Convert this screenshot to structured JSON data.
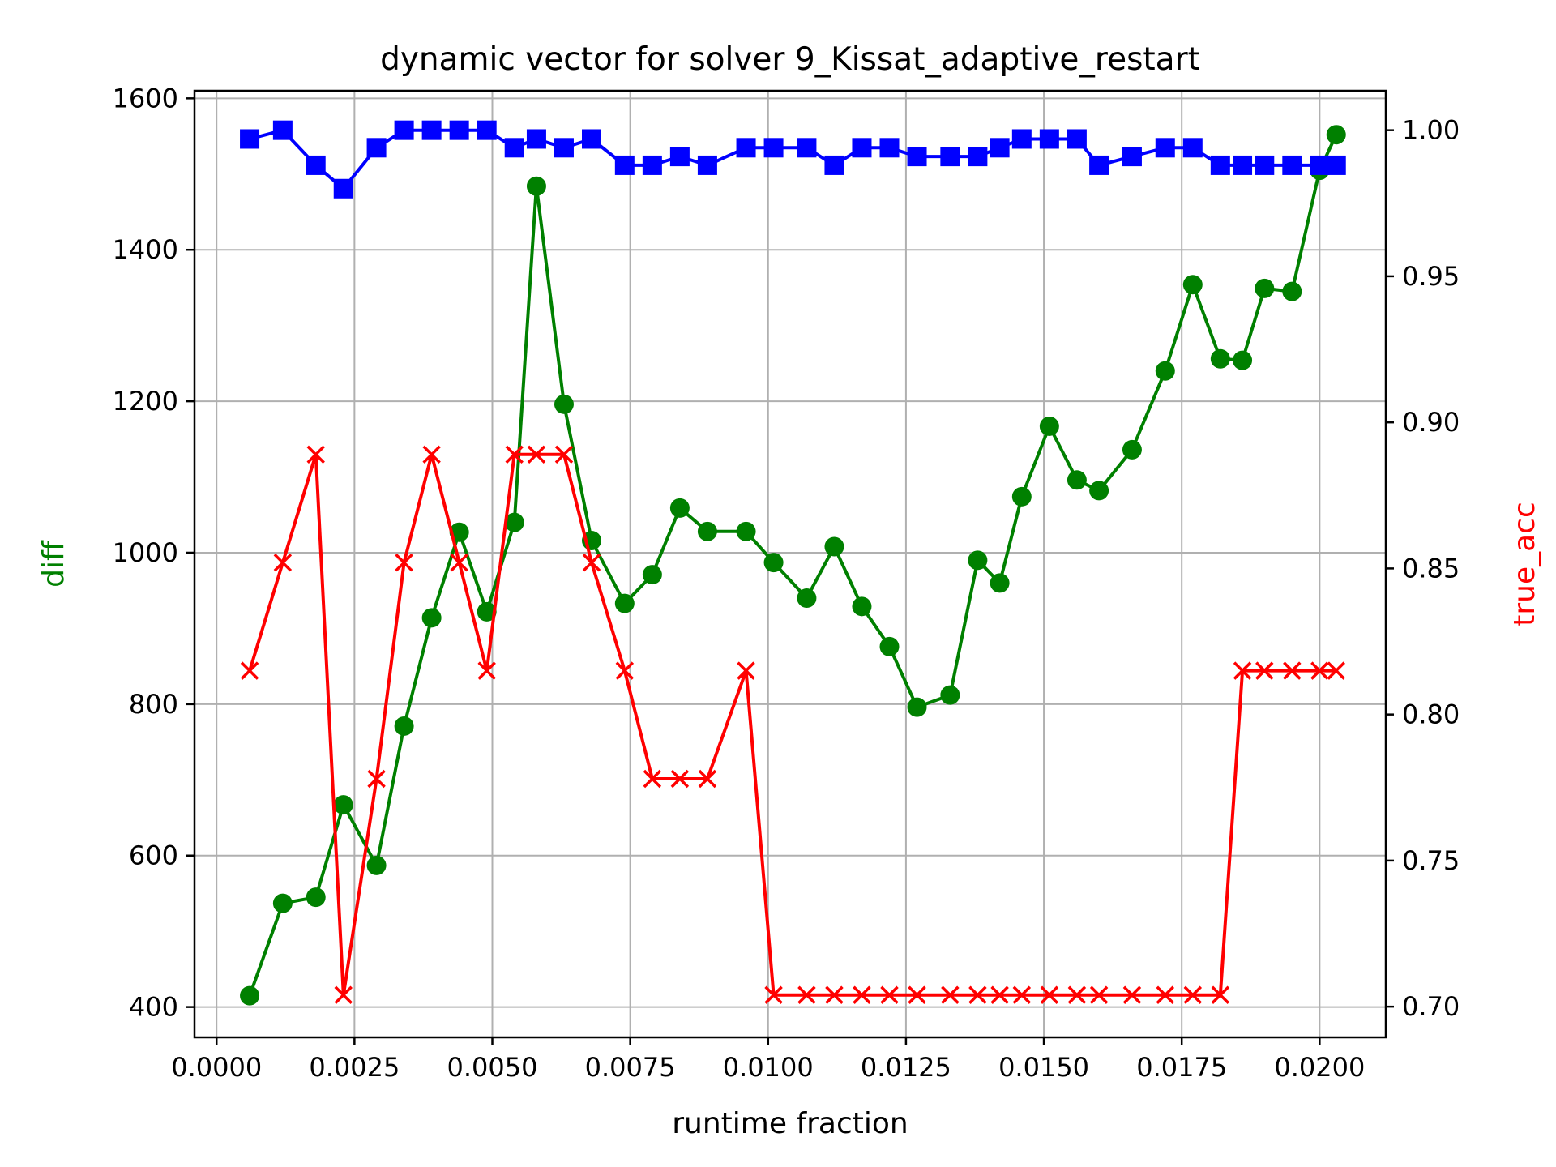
{
  "chart_data": {
    "type": "line",
    "title": "dynamic vector for solver 9_Kissat_adaptive_restart",
    "xlabel": "runtime fraction",
    "ylabel_left": "diff",
    "ylabel_right": "true_acc",
    "xlim": [
      -0.0004,
      0.0212
    ],
    "ylim_left": [
      360,
      1610
    ],
    "ylim_right": [
      0.6895,
      1.0135
    ],
    "x_ticks": [
      0.0,
      0.0025,
      0.005,
      0.0075,
      0.01,
      0.0125,
      0.015,
      0.0175,
      0.02
    ],
    "x_tick_labels": [
      "0.0000",
      "0.0025",
      "0.0050",
      "0.0075",
      "0.0100",
      "0.0125",
      "0.0150",
      "0.0175",
      "0.0200"
    ],
    "y_left_ticks": [
      400,
      600,
      800,
      1000,
      1200,
      1400,
      1600
    ],
    "y_left_tick_labels": [
      "400",
      "600",
      "800",
      "1000",
      "1200",
      "1400",
      "1600"
    ],
    "y_right_ticks": [
      0.7,
      0.75,
      0.8,
      0.85,
      0.9,
      0.95,
      1.0
    ],
    "y_right_tick_labels": [
      "0.70",
      "0.75",
      "0.80",
      "0.85",
      "0.90",
      "0.95",
      "1.00"
    ],
    "grid": true,
    "colors": {
      "diff": "#008000",
      "true_acc": "#ff0000",
      "blue_series": "#0000ff"
    },
    "series": [
      {
        "key": "diff",
        "axis": "left",
        "marker": "circle",
        "color": "#008000",
        "x": [
          0.0006,
          0.0012,
          0.0018,
          0.0023,
          0.0029,
          0.0034,
          0.0039,
          0.0044,
          0.0049,
          0.0054,
          0.0058,
          0.0063,
          0.0068,
          0.0074,
          0.0079,
          0.0084,
          0.0089,
          0.0096,
          0.0101,
          0.0107,
          0.0112,
          0.0117,
          0.0122,
          0.0127,
          0.0133,
          0.0138,
          0.0142,
          0.0146,
          0.0151,
          0.0156,
          0.016,
          0.0166,
          0.0172,
          0.0177,
          0.0182,
          0.0186,
          0.019,
          0.0195,
          0.02,
          0.0203
        ],
        "values": [
          415,
          537,
          545,
          667,
          587,
          771,
          914,
          1027,
          922,
          1040,
          1484,
          1196,
          1016,
          933,
          971,
          1059,
          1028,
          1028,
          987,
          940,
          1008,
          929,
          876,
          796,
          812,
          990,
          960,
          1074,
          1167,
          1096,
          1082,
          1136,
          1240,
          1354,
          1256,
          1254,
          1349,
          1345,
          1505,
          1552
        ]
      },
      {
        "key": "true_acc",
        "axis": "right",
        "marker": "x",
        "color": "#ff0000",
        "x": [
          0.0006,
          0.0012,
          0.0018,
          0.0023,
          0.0029,
          0.0034,
          0.0039,
          0.0044,
          0.0049,
          0.0054,
          0.0058,
          0.0063,
          0.0068,
          0.0074,
          0.0079,
          0.0084,
          0.0089,
          0.0096,
          0.0101,
          0.0107,
          0.0112,
          0.0117,
          0.0122,
          0.0127,
          0.0133,
          0.0138,
          0.0142,
          0.0146,
          0.0151,
          0.0156,
          0.016,
          0.0166,
          0.0172,
          0.0177,
          0.0182,
          0.0186,
          0.019,
          0.0195,
          0.02,
          0.0203
        ],
        "values": [
          0.815,
          0.852,
          0.889,
          0.704,
          0.778,
          0.852,
          0.889,
          0.852,
          0.815,
          0.889,
          0.889,
          0.889,
          0.852,
          0.815,
          0.778,
          0.778,
          0.778,
          0.815,
          0.704,
          0.704,
          0.704,
          0.704,
          0.704,
          0.704,
          0.704,
          0.704,
          0.704,
          0.704,
          0.704,
          0.704,
          0.704,
          0.704,
          0.704,
          0.704,
          0.704,
          0.815,
          0.815,
          0.815,
          0.815,
          0.815
        ]
      },
      {
        "key": "blue_series",
        "axis": "right",
        "marker": "square",
        "color": "#0000ff",
        "x": [
          0.0006,
          0.0012,
          0.0018,
          0.0023,
          0.0029,
          0.0034,
          0.0039,
          0.0044,
          0.0049,
          0.0054,
          0.0058,
          0.0063,
          0.0068,
          0.0074,
          0.0079,
          0.0084,
          0.0089,
          0.0096,
          0.0101,
          0.0107,
          0.0112,
          0.0117,
          0.0122,
          0.0127,
          0.0133,
          0.0138,
          0.0142,
          0.0146,
          0.0151,
          0.0156,
          0.016,
          0.0166,
          0.0172,
          0.0177,
          0.0182,
          0.0186,
          0.019,
          0.0195,
          0.02,
          0.0203
        ],
        "values": [
          0.997,
          1.0,
          0.988,
          0.98,
          0.994,
          1.0,
          1.0,
          1.0,
          1.0,
          0.994,
          0.997,
          0.994,
          0.997,
          0.988,
          0.988,
          0.991,
          0.988,
          0.994,
          0.994,
          0.994,
          0.988,
          0.994,
          0.994,
          0.991,
          0.991,
          0.991,
          0.994,
          0.997,
          0.997,
          0.997,
          0.988,
          0.991,
          0.994,
          0.994,
          0.988,
          0.988,
          0.988,
          0.988,
          0.988,
          0.988
        ]
      }
    ]
  }
}
